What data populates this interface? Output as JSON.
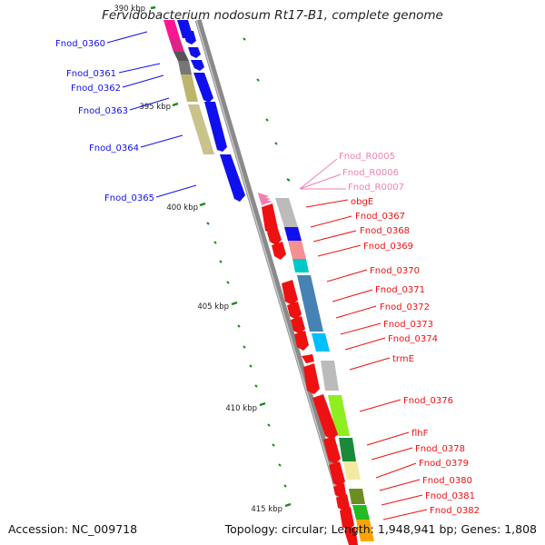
{
  "title": "Fervidobacterium nodosum Rt17-B1, complete genome",
  "footer": {
    "accession": "Accession: NC_009718",
    "summary": "Topology: circular; Length: 1,948,941 bp; Genes: 1,808"
  },
  "colors": {
    "backbone": "#8a8a8a",
    "forward_strand_genes": "#1010ee",
    "reverse_strand_genes": "#ee1111",
    "rna_genes": "#f080b0",
    "tick": "#1a8a1a"
  },
  "scale_ticks": [
    "390 kbp",
    "395 kbp",
    "400 kbp",
    "405 kbp",
    "410 kbp",
    "415 kbp"
  ],
  "genes_forward": [
    "Fnod_0360",
    "Fnod_0361",
    "Fnod_0362",
    "Fnod_0363",
    "Fnod_0364",
    "Fnod_0365"
  ],
  "genes_rna": [
    "Fnod_R0005",
    "Fnod_R0006",
    "Fnod_R0007"
  ],
  "genes_reverse": [
    "obgE",
    "Fnod_0367",
    "Fnod_0368",
    "Fnod_0369",
    "Fnod_0370",
    "Fnod_0371",
    "Fnod_0372",
    "Fnod_0373",
    "Fnod_0374",
    "trmE",
    "Fnod_0376",
    "flhF",
    "Fnod_0378",
    "Fnod_0379",
    "Fnod_0380",
    "Fnod_0381",
    "Fnod_0382"
  ]
}
